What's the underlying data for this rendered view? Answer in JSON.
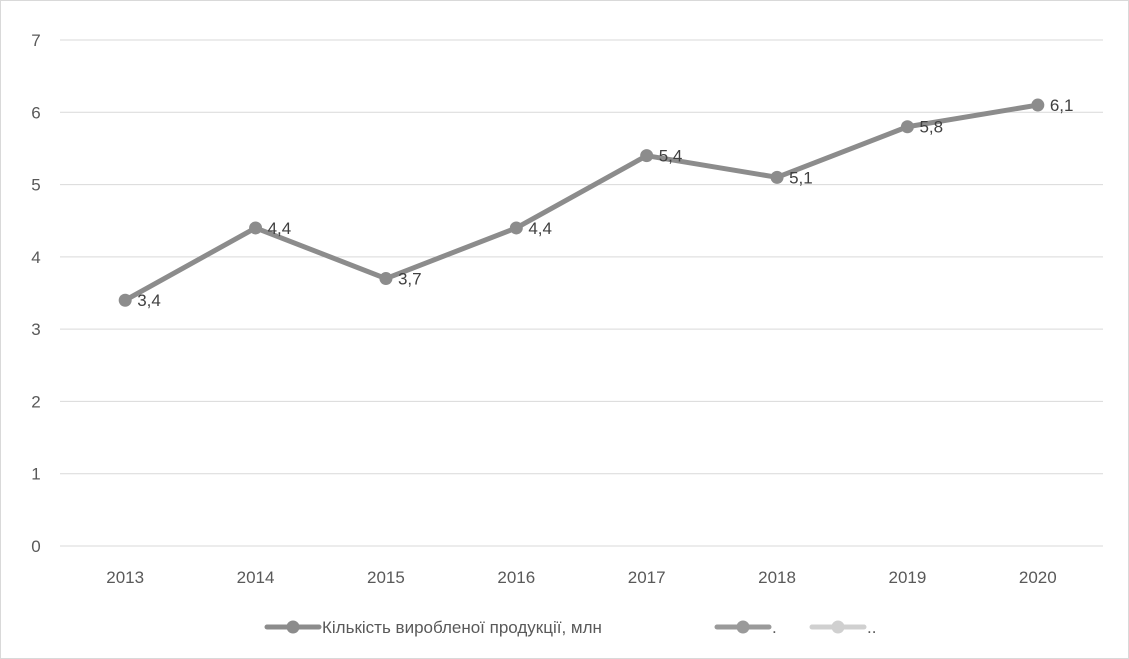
{
  "chart_data": {
    "type": "line",
    "categories": [
      "2013",
      "2014",
      "2015",
      "2016",
      "2017",
      "2018",
      "2019",
      "2020"
    ],
    "series": [
      {
        "name": "Кількість виробленої продукції, млн",
        "values": [
          3.4,
          4.4,
          3.7,
          4.4,
          5.4,
          5.1,
          5.8,
          6.1
        ],
        "data_labels": [
          "3,4",
          "4,4",
          "3,7",
          "4,4",
          "5,4",
          "5,1",
          "5,8",
          "6,1"
        ],
        "color": "#8c8c8c"
      }
    ],
    "legend_entries": [
      {
        "label": "Кількість виробленої продукції, млн",
        "color": "#8c8c8c"
      },
      {
        "label": ".",
        "color": "#9a9a9a"
      },
      {
        "label": "..",
        "color": "#d0d0d0"
      }
    ],
    "y_ticks": [
      "0",
      "1",
      "2",
      "3",
      "4",
      "5",
      "6",
      "7"
    ],
    "ylim": [
      0,
      7
    ],
    "grid": true,
    "legend_position": "bottom",
    "title": "",
    "xlabel": "",
    "ylabel": ""
  }
}
